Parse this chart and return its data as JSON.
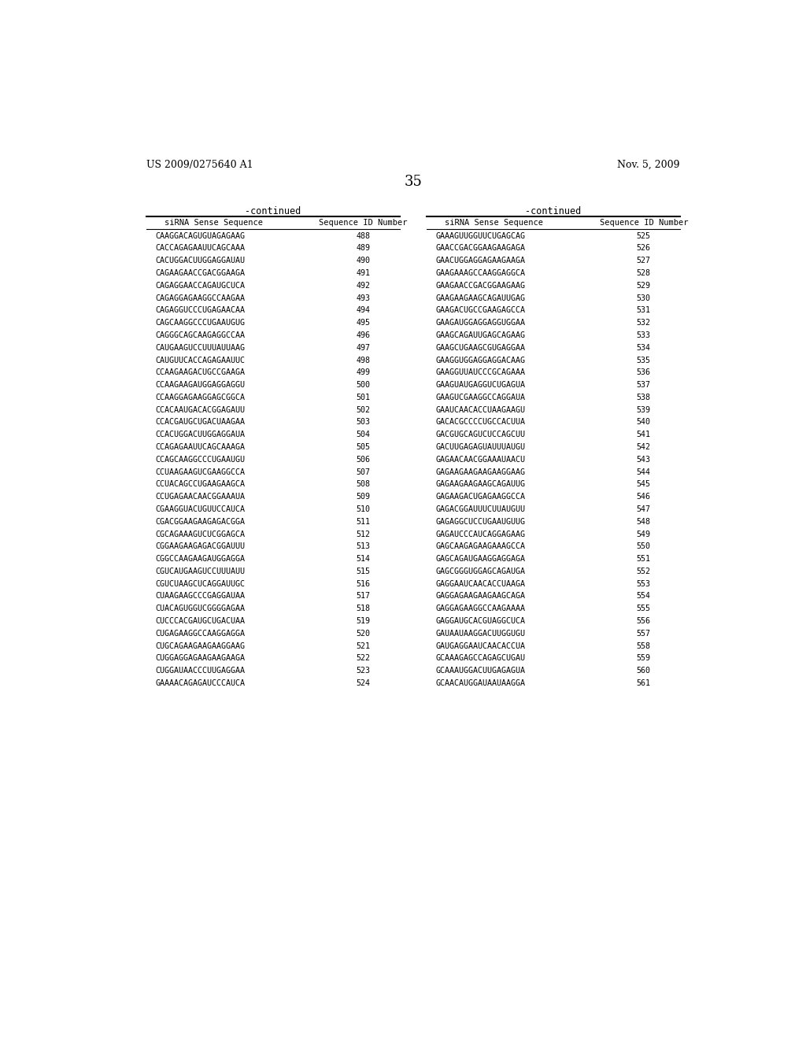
{
  "header_left": "US 2009/0275640 A1",
  "header_right": "Nov. 5, 2009",
  "page_number": "35",
  "table_title": "-continued",
  "col1_header": "siRNA Sense Sequence",
  "col2_header": "Sequence ID Number",
  "left_data": [
    [
      "CAAGGACAGUGUAGAGAAG",
      "488"
    ],
    [
      "CACCAGAGAAUUCAGCAAA",
      "489"
    ],
    [
      "CACUGGACUUGGAGGAUAU",
      "490"
    ],
    [
      "CAGAAGAACCGACGGAAGA",
      "491"
    ],
    [
      "CAGAGGAACCAGAUGCUCA",
      "492"
    ],
    [
      "CAGAGGAGAAGGCCAAGAA",
      "493"
    ],
    [
      "CAGAGGUCCCUGAGAACAA",
      "494"
    ],
    [
      "CAGCAAGGCCCUGAAUGUG",
      "495"
    ],
    [
      "CAGGGCAGCAAGAGGCCAA",
      "496"
    ],
    [
      "CAUGAAGUCCUUUAUUAAG",
      "497"
    ],
    [
      "CAUGUUCACCAGAGAAUUC",
      "498"
    ],
    [
      "CCAAGAAGACUGCCGAAGA",
      "499"
    ],
    [
      "CCAAGAAGAUGGAGGAGGU",
      "500"
    ],
    [
      "CCAAGGAGAAGGAGCGGCA",
      "501"
    ],
    [
      "CCACAAUGACACGGAGAUU",
      "502"
    ],
    [
      "CCACGAUGCUGACUAAGAA",
      "503"
    ],
    [
      "CCACUGGACUUGGAGGAUA",
      "504"
    ],
    [
      "CCAGAGAAUUCAGCAAAGA",
      "505"
    ],
    [
      "CCAGCAAGGCCCUGAAUGU",
      "506"
    ],
    [
      "CCUAAGAAGUCGAAGGCCA",
      "507"
    ],
    [
      "CCUACAGCCUGAAGAAGCA",
      "508"
    ],
    [
      "CCUGAGAACAACGGAAAUA",
      "509"
    ],
    [
      "CGAAGGUACUGUUCCAUCA",
      "510"
    ],
    [
      "CGACGGAAGAAGAGACGGA",
      "511"
    ],
    [
      "CGCAGAAAGUCUCGGAGCA",
      "512"
    ],
    [
      "CGGAAGAAGAGACGGAUUU",
      "513"
    ],
    [
      "CGGCCAAGAAGAUGGAGGA",
      "514"
    ],
    [
      "CGUCAUGAAGUCCUUUAUU",
      "515"
    ],
    [
      "CGUCUAAGCUCAGGAUUGC",
      "516"
    ],
    [
      "CUAAGAAGCCCGAGGAUAA",
      "517"
    ],
    [
      "CUACAGUGGUCGGGGAGAA",
      "518"
    ],
    [
      "CUCCCACGAUGCUGACUAA",
      "519"
    ],
    [
      "CUGAGAAGGCCAAGGAGGA",
      "520"
    ],
    [
      "CUGCAGAAGAAGAAGGAAG",
      "521"
    ],
    [
      "CUGGAGGAGAAGAAGAAGA",
      "522"
    ],
    [
      "CUGGAUAACCCUUGAGGAA",
      "523"
    ],
    [
      "GAAAACAGAGAUCCCAUCA",
      "524"
    ]
  ],
  "right_data": [
    [
      "GAAAGUUGGUUCUGAGCAG",
      "525"
    ],
    [
      "GAACCGACGGAAGAAGAGA",
      "526"
    ],
    [
      "GAACUGGAGGAGAAGAAGA",
      "527"
    ],
    [
      "GAAGAAAGCCAAGGAGGCA",
      "528"
    ],
    [
      "GAAGAACCGACGGAAGAAG",
      "529"
    ],
    [
      "GAAGAAGAAGCAGAUUGAG",
      "530"
    ],
    [
      "GAAGACUGCCGAAGAGCCA",
      "531"
    ],
    [
      "GAAGAUGGAGGAGGUGGAA",
      "532"
    ],
    [
      "GAAGCAGAUUGAGCAGAAG",
      "533"
    ],
    [
      "GAAGCUGAAGCGUGAGGAA",
      "534"
    ],
    [
      "GAAGGUGGAGGAGGACAAG",
      "535"
    ],
    [
      "GAAGGUUAUCCCGCAGAAA",
      "536"
    ],
    [
      "GAAGUAUGAGGUCUGAGUA",
      "537"
    ],
    [
      "GAAGUCGAAGGCCAGGAUA",
      "538"
    ],
    [
      "GAAUCAACACCUAAGAAGU",
      "539"
    ],
    [
      "GACACGCCCCUGCCACUUA",
      "540"
    ],
    [
      "GACGUGCAGUCUCCAGCUU",
      "541"
    ],
    [
      "GACUUGAGAGUAUUUAUGU",
      "542"
    ],
    [
      "GAGAACAACGGAAAUAACU",
      "543"
    ],
    [
      "GAGAAGAAGAAGAAGGAAG",
      "544"
    ],
    [
      "GAGAAGAAGAAGCAGAUUG",
      "545"
    ],
    [
      "GAGAAGACUGAGAAGGCCA",
      "546"
    ],
    [
      "GAGACGGAUUUCUUAUGUU",
      "547"
    ],
    [
      "GAGAGGCUCCUGAAUGUUG",
      "548"
    ],
    [
      "GAGAUCCCAUCAGGAGAAG",
      "549"
    ],
    [
      "GAGCAAGAGAAGAAAGCCA",
      "550"
    ],
    [
      "GAGCAGAUGAAGGAGGAGA",
      "551"
    ],
    [
      "GAGCGGGUGGAGCAGAUGA",
      "552"
    ],
    [
      "GAGGAAUCAACACCUAAGA",
      "553"
    ],
    [
      "GAGGAGAAGAAGAAGCAGA",
      "554"
    ],
    [
      "GAGGAGAAGGCCAAGAAAA",
      "555"
    ],
    [
      "GAGGAUGCACGUAGGCUCA",
      "556"
    ],
    [
      "GAUAAUAAGGACUUGGUGU",
      "557"
    ],
    [
      "GAUGAGGAAUCAACACCUA",
      "558"
    ],
    [
      "GCAAAGAGCCAGAGCUGAU",
      "559"
    ],
    [
      "GCAAAUGGACUUGAGAGUA",
      "560"
    ],
    [
      "GCAACAUGGAUAAUAAGGA",
      "561"
    ]
  ],
  "background_color": "#ffffff",
  "text_color": "#000000"
}
